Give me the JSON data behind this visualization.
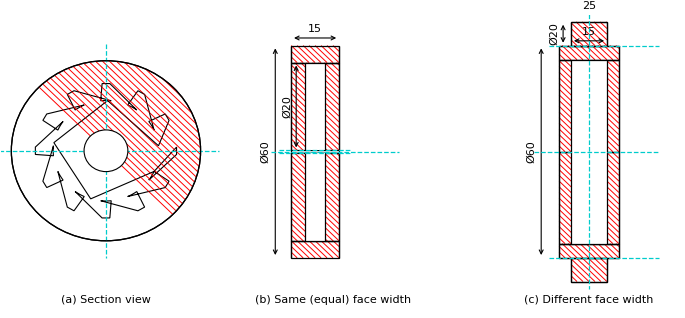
{
  "bg_color": "#ffffff",
  "line_color": "#000000",
  "hatch_color": "#ff0000",
  "cyan_color": "#00cccc",
  "fig_width": 6.85,
  "fig_height": 3.18,
  "dpi": 100,
  "labels": {
    "a": "(a) Section view",
    "b": "(b) Same (equal) face width",
    "c": "(c) Different face width"
  },
  "dims": {
    "b_width": "15",
    "b_phi60": "Ø60",
    "b_phi20": "Ø20",
    "c_width_outer": "25",
    "c_width_inner": "15",
    "c_phi60": "Ø60",
    "c_phi20": "Ø20"
  }
}
